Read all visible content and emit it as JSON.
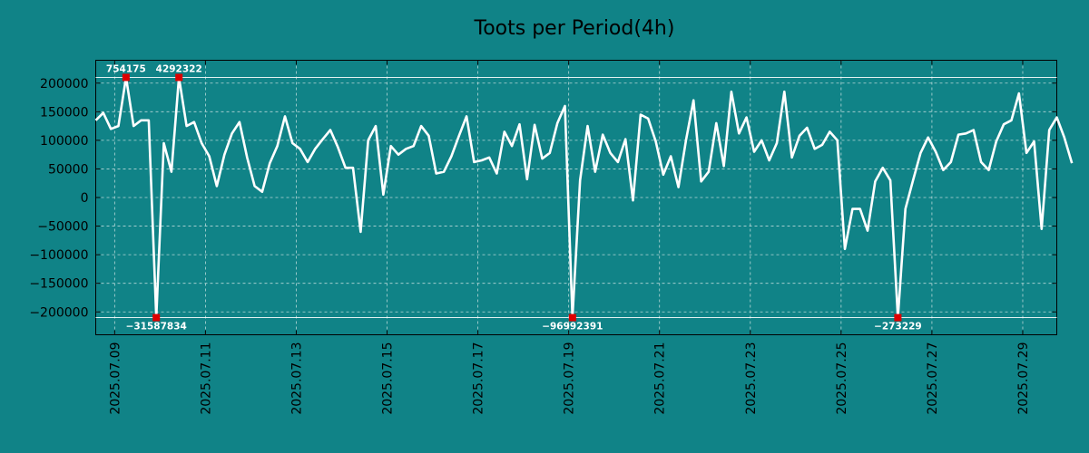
{
  "chart_data": {
    "type": "line",
    "title": "Toots per Period(4h)",
    "xlabel": "",
    "ylabel": "",
    "xlim": [
      0,
      127
    ],
    "ylim": [
      -240000,
      240000
    ],
    "y_ticks": [
      200000,
      150000,
      100000,
      50000,
      0,
      -50000,
      -100000,
      -150000,
      -200000
    ],
    "y_tick_labels": [
      "200000",
      "150000",
      "100000",
      "50000",
      "0",
      "−50000",
      "−100000",
      "−150000",
      "−200000"
    ],
    "x_ticks": [
      2.5,
      14.5,
      26.5,
      38.5,
      50.5,
      62.5,
      74.5,
      86.5,
      98.5,
      110.5,
      122.5
    ],
    "x_tick_labels": [
      "2025.07.09",
      "2025.07.11",
      "2025.07.13",
      "2025.07.15",
      "2025.07.17",
      "2025.07.19",
      "2025.07.21",
      "2025.07.23",
      "2025.07.25",
      "2025.07.27",
      "2025.07.29"
    ],
    "grid": true,
    "line_color": "#ffffff",
    "marker_color": "#dd0000",
    "clip_values": [
      210000,
      -210000
    ],
    "series": [
      {
        "name": "toots",
        "values": [
          135000,
          148000,
          120000,
          125000,
          210000,
          125000,
          135000,
          135000,
          -210000,
          95000,
          45000,
          210000,
          125000,
          132000,
          95000,
          72000,
          20000,
          75000,
          112000,
          132000,
          70000,
          20000,
          10000,
          60000,
          90000,
          142000,
          95000,
          85000,
          62000,
          85000,
          102000,
          118000,
          88000,
          52000,
          52000,
          -60000,
          100000,
          125000,
          5000,
          90000,
          75000,
          85000,
          90000,
          125000,
          108000,
          42000,
          45000,
          72000,
          108000,
          142000,
          62000,
          65000,
          70000,
          42000,
          115000,
          90000,
          128000,
          32000,
          127000,
          68000,
          78000,
          130000,
          160000,
          -210000,
          30000,
          125000,
          45000,
          110000,
          78000,
          62000,
          102000,
          -5000,
          145000,
          138000,
          98000,
          40000,
          72000,
          18000,
          100000,
          170000,
          28000,
          45000,
          130000,
          55000,
          185000,
          112000,
          140000,
          80000,
          100000,
          65000,
          95000,
          185000,
          70000,
          108000,
          122000,
          85000,
          92000,
          115000,
          100000,
          -90000,
          -20000,
          -20000,
          -58000,
          28000,
          52000,
          30000,
          -210000,
          -20000,
          30000,
          78000,
          105000,
          80000,
          48000,
          62000,
          110000,
          112000,
          118000,
          62000,
          48000,
          98000,
          128000,
          135000,
          182000,
          78000,
          98000,
          -55000,
          118000,
          140000,
          105000,
          60000
        ]
      }
    ],
    "annotations": [
      {
        "index": 4,
        "label": "754175",
        "position": "top"
      },
      {
        "index": 11,
        "label": "4292322",
        "position": "top"
      },
      {
        "index": 8,
        "label": "−31587834",
        "position": "bottom"
      },
      {
        "index": 63,
        "label": "−96992391",
        "position": "bottom"
      },
      {
        "index": 106,
        "label": "−273229",
        "position": "bottom"
      }
    ]
  }
}
